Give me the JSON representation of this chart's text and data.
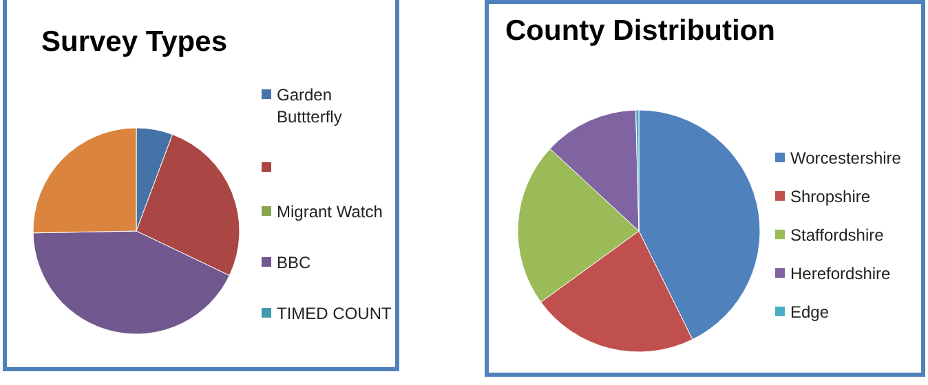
{
  "chart_data": [
    {
      "type": "pie",
      "title": "Survey Types",
      "categories": [
        "Garden Buttterfly",
        null,
        "Migrant Watch",
        "BBC",
        "TIMED COUNT",
        null
      ],
      "values": [
        5.7,
        26.4,
        0,
        42.6,
        0,
        25.3
      ],
      "colors": [
        "#4572a7",
        "#aa4643",
        "#89a54e",
        "#71588f",
        "#4198af",
        "#db843d"
      ],
      "legend": "right"
    },
    {
      "type": "pie",
      "title": "County Distribution",
      "categories": [
        "Worcestershire",
        "Shropshire",
        "Staffordshire",
        "Herefordshire",
        "Edge"
      ],
      "values": [
        42.7,
        22.3,
        21.9,
        12.7,
        0.4
      ],
      "colors": [
        "#4f81bd",
        "#c0504d",
        "#9bbb59",
        "#8064a2",
        "#4bacc6"
      ],
      "legend": "right"
    }
  ]
}
